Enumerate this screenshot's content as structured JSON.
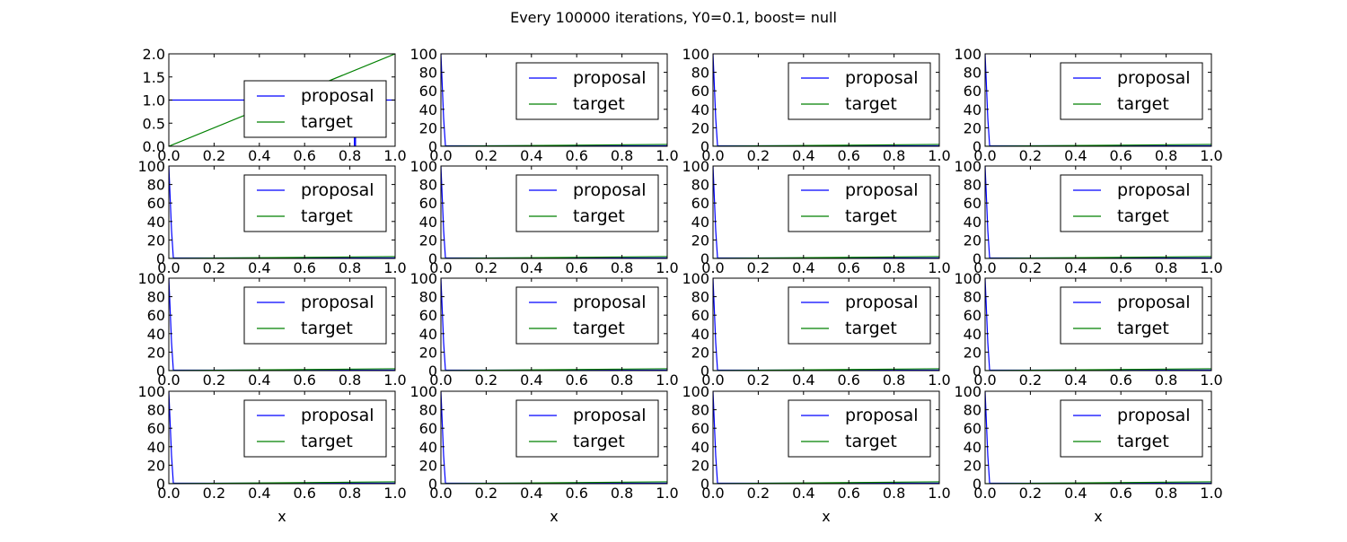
{
  "figure": {
    "title": "Every 100000 iterations, Y0=0.1, boost= null",
    "colors": {
      "proposal": "#0000ff",
      "target": "#008000",
      "axes": "#000000",
      "background": "#ffffff"
    }
  },
  "chart_data": [
    {
      "type": "line",
      "panel": 1,
      "xlabel": "",
      "ylabel": "",
      "xlim": [
        0,
        1
      ],
      "ylim": [
        0,
        2
      ],
      "xticks": [
        "0.0",
        "0.2",
        "0.4",
        "0.6",
        "0.8",
        "1.0"
      ],
      "yticks": [
        "0.0",
        "0.5",
        "1.0",
        "1.5",
        "2.0"
      ],
      "legend": {
        "position": "center-right",
        "entries": [
          "proposal",
          "target"
        ]
      },
      "series": [
        {
          "name": "proposal",
          "x": [
            0,
            0.82,
            0.82,
            0.825,
            0.825,
            1
          ],
          "y": [
            1,
            1,
            0,
            0,
            1,
            1
          ]
        },
        {
          "name": "target",
          "x": [
            0,
            1
          ],
          "y": [
            0,
            2
          ]
        }
      ]
    },
    {
      "type": "line",
      "panel": 2,
      "xlabel": "",
      "ylabel": "",
      "xlim": [
        0,
        1
      ],
      "ylim": [
        0,
        100
      ],
      "xticks": [
        "0.0",
        "0.2",
        "0.4",
        "0.6",
        "0.8",
        "1.0"
      ],
      "yticks": [
        "0",
        "20",
        "40",
        "60",
        "80",
        "100"
      ],
      "legend": {
        "position": "upper-right",
        "entries": [
          "proposal",
          "target"
        ]
      },
      "series": [
        {
          "name": "proposal",
          "x": [
            0,
            0.012,
            0.02,
            1
          ],
          "y": [
            100,
            30,
            0.5,
            0.5
          ]
        },
        {
          "name": "target",
          "x": [
            0,
            1
          ],
          "y": [
            0,
            2
          ]
        }
      ]
    },
    {
      "type": "line",
      "panel": 3,
      "xlabel": "",
      "ylabel": "",
      "xlim": [
        0,
        1
      ],
      "ylim": [
        0,
        100
      ],
      "xticks": [
        "0.0",
        "0.2",
        "0.4",
        "0.6",
        "0.8",
        "1.0"
      ],
      "yticks": [
        "0",
        "20",
        "40",
        "60",
        "80",
        "100"
      ],
      "legend": {
        "position": "upper-right",
        "entries": [
          "proposal",
          "target"
        ]
      },
      "series": [
        {
          "name": "proposal",
          "x": [
            0,
            0.012,
            0.02,
            1
          ],
          "y": [
            100,
            30,
            0.5,
            0.5
          ]
        },
        {
          "name": "target",
          "x": [
            0,
            1
          ],
          "y": [
            0,
            2
          ]
        }
      ]
    },
    {
      "type": "line",
      "panel": 4,
      "xlabel": "",
      "ylabel": "",
      "xlim": [
        0,
        1
      ],
      "ylim": [
        0,
        100
      ],
      "xticks": [
        "0.0",
        "0.2",
        "0.4",
        "0.6",
        "0.8",
        "1.0"
      ],
      "yticks": [
        "0",
        "20",
        "40",
        "60",
        "80",
        "100"
      ],
      "legend": {
        "position": "upper-right",
        "entries": [
          "proposal",
          "target"
        ]
      },
      "series": [
        {
          "name": "proposal",
          "x": [
            0,
            0.012,
            0.02,
            1
          ],
          "y": [
            100,
            30,
            0.5,
            0.5
          ]
        },
        {
          "name": "target",
          "x": [
            0,
            1
          ],
          "y": [
            0,
            2
          ]
        }
      ]
    },
    {
      "type": "line",
      "panel": 5,
      "xlabel": "",
      "ylabel": "",
      "xlim": [
        0,
        1
      ],
      "ylim": [
        0,
        100
      ],
      "xticks": [
        "0.0",
        "0.2",
        "0.4",
        "0.6",
        "0.8",
        "1.0"
      ],
      "yticks": [
        "0",
        "20",
        "40",
        "60",
        "80",
        "100"
      ],
      "legend": {
        "position": "upper-right",
        "entries": [
          "proposal",
          "target"
        ]
      },
      "series": [
        {
          "name": "proposal",
          "x": [
            0,
            0.012,
            0.02,
            1
          ],
          "y": [
            100,
            30,
            0.5,
            0.5
          ]
        },
        {
          "name": "target",
          "x": [
            0,
            1
          ],
          "y": [
            0,
            2
          ]
        }
      ]
    },
    {
      "type": "line",
      "panel": 6,
      "xlabel": "",
      "ylabel": "",
      "xlim": [
        0,
        1
      ],
      "ylim": [
        0,
        100
      ],
      "xticks": [
        "0.0",
        "0.2",
        "0.4",
        "0.6",
        "0.8",
        "1.0"
      ],
      "yticks": [
        "0",
        "20",
        "40",
        "60",
        "80",
        "100"
      ],
      "legend": {
        "position": "upper-right",
        "entries": [
          "proposal",
          "target"
        ]
      },
      "series": [
        {
          "name": "proposal",
          "x": [
            0,
            0.012,
            0.02,
            1
          ],
          "y": [
            100,
            30,
            0.5,
            0.5
          ]
        },
        {
          "name": "target",
          "x": [
            0,
            1
          ],
          "y": [
            0,
            2
          ]
        }
      ]
    },
    {
      "type": "line",
      "panel": 7,
      "xlabel": "",
      "ylabel": "",
      "xlim": [
        0,
        1
      ],
      "ylim": [
        0,
        100
      ],
      "xticks": [
        "0.0",
        "0.2",
        "0.4",
        "0.6",
        "0.8",
        "1.0"
      ],
      "yticks": [
        "0",
        "20",
        "40",
        "60",
        "80",
        "100"
      ],
      "legend": {
        "position": "upper-right",
        "entries": [
          "proposal",
          "target"
        ]
      },
      "series": [
        {
          "name": "proposal",
          "x": [
            0,
            0.012,
            0.02,
            1
          ],
          "y": [
            100,
            30,
            0.5,
            0.5
          ]
        },
        {
          "name": "target",
          "x": [
            0,
            1
          ],
          "y": [
            0,
            2
          ]
        }
      ]
    },
    {
      "type": "line",
      "panel": 8,
      "xlabel": "",
      "ylabel": "",
      "xlim": [
        0,
        1
      ],
      "ylim": [
        0,
        100
      ],
      "xticks": [
        "0.0",
        "0.2",
        "0.4",
        "0.6",
        "0.8",
        "1.0"
      ],
      "yticks": [
        "0",
        "20",
        "40",
        "60",
        "80",
        "100"
      ],
      "legend": {
        "position": "upper-right",
        "entries": [
          "proposal",
          "target"
        ]
      },
      "series": [
        {
          "name": "proposal",
          "x": [
            0,
            0.012,
            0.02,
            1
          ],
          "y": [
            100,
            30,
            0.5,
            0.5
          ]
        },
        {
          "name": "target",
          "x": [
            0,
            1
          ],
          "y": [
            0,
            2
          ]
        }
      ]
    },
    {
      "type": "line",
      "panel": 9,
      "xlabel": "",
      "ylabel": "",
      "xlim": [
        0,
        1
      ],
      "ylim": [
        0,
        100
      ],
      "xticks": [
        "0.0",
        "0.2",
        "0.4",
        "0.6",
        "0.8",
        "1.0"
      ],
      "yticks": [
        "0",
        "20",
        "40",
        "60",
        "80",
        "100"
      ],
      "legend": {
        "position": "upper-right",
        "entries": [
          "proposal",
          "target"
        ]
      },
      "series": [
        {
          "name": "proposal",
          "x": [
            0,
            0.012,
            0.02,
            1
          ],
          "y": [
            100,
            30,
            0.5,
            0.5
          ]
        },
        {
          "name": "target",
          "x": [
            0,
            1
          ],
          "y": [
            0,
            2
          ]
        }
      ]
    },
    {
      "type": "line",
      "panel": 10,
      "xlabel": "",
      "ylabel": "",
      "xlim": [
        0,
        1
      ],
      "ylim": [
        0,
        100
      ],
      "xticks": [
        "0.0",
        "0.2",
        "0.4",
        "0.6",
        "0.8",
        "1.0"
      ],
      "yticks": [
        "0",
        "20",
        "40",
        "60",
        "80",
        "100"
      ],
      "legend": {
        "position": "upper-right",
        "entries": [
          "proposal",
          "target"
        ]
      },
      "series": [
        {
          "name": "proposal",
          "x": [
            0,
            0.012,
            0.02,
            1
          ],
          "y": [
            100,
            30,
            0.5,
            0.5
          ]
        },
        {
          "name": "target",
          "x": [
            0,
            1
          ],
          "y": [
            0,
            2
          ]
        }
      ]
    },
    {
      "type": "line",
      "panel": 11,
      "xlabel": "",
      "ylabel": "",
      "xlim": [
        0,
        1
      ],
      "ylim": [
        0,
        100
      ],
      "xticks": [
        "0.0",
        "0.2",
        "0.4",
        "0.6",
        "0.8",
        "1.0"
      ],
      "yticks": [
        "0",
        "20",
        "40",
        "60",
        "80",
        "100"
      ],
      "legend": {
        "position": "upper-right",
        "entries": [
          "proposal",
          "target"
        ]
      },
      "series": [
        {
          "name": "proposal",
          "x": [
            0,
            0.012,
            0.02,
            1
          ],
          "y": [
            100,
            30,
            0.5,
            0.5
          ]
        },
        {
          "name": "target",
          "x": [
            0,
            1
          ],
          "y": [
            0,
            2
          ]
        }
      ]
    },
    {
      "type": "line",
      "panel": 12,
      "xlabel": "",
      "ylabel": "",
      "xlim": [
        0,
        1
      ],
      "ylim": [
        0,
        100
      ],
      "xticks": [
        "0.0",
        "0.2",
        "0.4",
        "0.6",
        "0.8",
        "1.0"
      ],
      "yticks": [
        "0",
        "20",
        "40",
        "60",
        "80",
        "100"
      ],
      "legend": {
        "position": "upper-right",
        "entries": [
          "proposal",
          "target"
        ]
      },
      "series": [
        {
          "name": "proposal",
          "x": [
            0,
            0.012,
            0.02,
            1
          ],
          "y": [
            100,
            30,
            0.5,
            0.5
          ]
        },
        {
          "name": "target",
          "x": [
            0,
            1
          ],
          "y": [
            0,
            2
          ]
        }
      ]
    },
    {
      "type": "line",
      "panel": 13,
      "xlabel": "x",
      "ylabel": "",
      "xlim": [
        0,
        1
      ],
      "ylim": [
        0,
        100
      ],
      "xticks": [
        "0.0",
        "0.2",
        "0.4",
        "0.6",
        "0.8",
        "1.0"
      ],
      "yticks": [
        "0",
        "20",
        "40",
        "60",
        "80",
        "100"
      ],
      "legend": {
        "position": "upper-right",
        "entries": [
          "proposal",
          "target"
        ]
      },
      "series": [
        {
          "name": "proposal",
          "x": [
            0,
            0.012,
            0.02,
            1
          ],
          "y": [
            100,
            30,
            0.5,
            0.5
          ]
        },
        {
          "name": "target",
          "x": [
            0,
            1
          ],
          "y": [
            0,
            2
          ]
        }
      ]
    },
    {
      "type": "line",
      "panel": 14,
      "xlabel": "x",
      "ylabel": "",
      "xlim": [
        0,
        1
      ],
      "ylim": [
        0,
        100
      ],
      "xticks": [
        "0.0",
        "0.2",
        "0.4",
        "0.6",
        "0.8",
        "1.0"
      ],
      "yticks": [
        "0",
        "20",
        "40",
        "60",
        "80",
        "100"
      ],
      "legend": {
        "position": "upper-right",
        "entries": [
          "proposal",
          "target"
        ]
      },
      "series": [
        {
          "name": "proposal",
          "x": [
            0,
            0.012,
            0.02,
            1
          ],
          "y": [
            100,
            30,
            0.5,
            0.5
          ]
        },
        {
          "name": "target",
          "x": [
            0,
            1
          ],
          "y": [
            0,
            2
          ]
        }
      ]
    },
    {
      "type": "line",
      "panel": 15,
      "xlabel": "x",
      "ylabel": "",
      "xlim": [
        0,
        1
      ],
      "ylim": [
        0,
        100
      ],
      "xticks": [
        "0.0",
        "0.2",
        "0.4",
        "0.6",
        "0.8",
        "1.0"
      ],
      "yticks": [
        "0",
        "20",
        "40",
        "60",
        "80",
        "100"
      ],
      "legend": {
        "position": "upper-right",
        "entries": [
          "proposal",
          "target"
        ]
      },
      "series": [
        {
          "name": "proposal",
          "x": [
            0,
            0.012,
            0.02,
            1
          ],
          "y": [
            100,
            30,
            0.5,
            0.5
          ]
        },
        {
          "name": "target",
          "x": [
            0,
            1
          ],
          "y": [
            0,
            2
          ]
        }
      ]
    },
    {
      "type": "line",
      "panel": 16,
      "xlabel": "x",
      "ylabel": "",
      "xlim": [
        0,
        1
      ],
      "ylim": [
        0,
        100
      ],
      "xticks": [
        "0.0",
        "0.2",
        "0.4",
        "0.6",
        "0.8",
        "1.0"
      ],
      "yticks": [
        "0",
        "20",
        "40",
        "60",
        "80",
        "100"
      ],
      "legend": {
        "position": "upper-right",
        "entries": [
          "proposal",
          "target"
        ]
      },
      "series": [
        {
          "name": "proposal",
          "x": [
            0,
            0.012,
            0.02,
            1
          ],
          "y": [
            100,
            30,
            0.5,
            0.5
          ]
        },
        {
          "name": "target",
          "x": [
            0,
            1
          ],
          "y": [
            0,
            2
          ]
        }
      ]
    }
  ]
}
